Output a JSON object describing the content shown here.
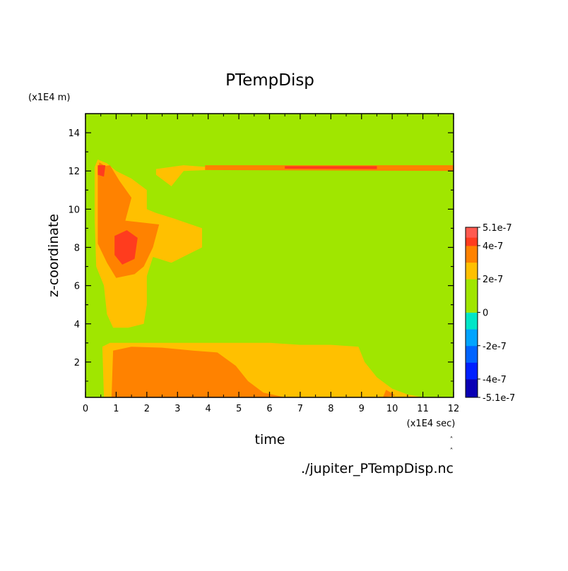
{
  "chart_data": {
    "type": "heatmap",
    "title": "PTempDisp",
    "xlabel": "time",
    "ylabel": "z-coordinate",
    "x_unit": "(x1E4 sec)",
    "y_unit": "(x1E4 m)",
    "source_file": "./jupiter_PTempDisp.nc",
    "xlim": [
      0,
      12
    ],
    "ylim": [
      0.15,
      15
    ],
    "x_ticks": [
      "0",
      "1",
      "2",
      "3",
      "4",
      "5",
      "6",
      "7",
      "8",
      "9",
      "10",
      "11",
      "12"
    ],
    "y_ticks": [
      "2",
      "4",
      "6",
      "8",
      "10",
      "12",
      "14"
    ],
    "colorbar": {
      "range": [
        -5.1e-07,
        5.1e-07
      ],
      "tick_labels": [
        "5.1e-7",
        "4e-7",
        "2e-7",
        "0",
        "-2e-7",
        "-4e-7",
        "-5.1e-7"
      ],
      "levels": [
        {
          "from": -5.1e-07,
          "to": -4e-07,
          "color": "#0a00b4"
        },
        {
          "from": -4e-07,
          "to": -3e-07,
          "color": "#0020ff"
        },
        {
          "from": -3e-07,
          "to": -2e-07,
          "color": "#0064ff"
        },
        {
          "from": -2e-07,
          "to": -1e-07,
          "color": "#00a4ff"
        },
        {
          "from": -1e-07,
          "to": 0,
          "color": "#00e6c8"
        },
        {
          "from": 0,
          "to": 1e-07,
          "color": "#a0e600"
        },
        {
          "from": 1e-07,
          "to": 2e-07,
          "color": "#a0e600"
        },
        {
          "from": 2e-07,
          "to": 3e-07,
          "color": "#ffc000"
        },
        {
          "from": 3e-07,
          "to": 4e-07,
          "color": "#ff8200"
        },
        {
          "from": 4e-07,
          "to": 4.5e-07,
          "color": "#ff3c1e"
        },
        {
          "from": 4.5e-07,
          "to": 5.1e-07,
          "color": "#ff5a50"
        }
      ]
    },
    "background_level": "#a0e600",
    "regions": [
      {
        "level": "#ffc000",
        "points": [
          [
            0.4,
            12.6
          ],
          [
            0.7,
            12.4
          ],
          [
            1.0,
            12.0
          ],
          [
            1.5,
            11.6
          ],
          [
            2.0,
            11.0
          ],
          [
            2.0,
            10.0
          ],
          [
            2.3,
            9.8
          ],
          [
            2.9,
            9.5
          ],
          [
            3.8,
            9.0
          ],
          [
            3.8,
            8.0
          ],
          [
            2.8,
            7.2
          ],
          [
            2.2,
            7.5
          ],
          [
            2.0,
            6.5
          ],
          [
            2.0,
            5.0
          ],
          [
            1.9,
            4.0
          ],
          [
            1.4,
            3.8
          ],
          [
            0.9,
            3.8
          ],
          [
            0.7,
            4.5
          ],
          [
            0.6,
            6.0
          ],
          [
            0.35,
            7.0
          ],
          [
            0.3,
            9.5
          ],
          [
            0.3,
            12.2
          ]
        ]
      },
      {
        "level": "#ffc000",
        "points": [
          [
            2.3,
            12.1
          ],
          [
            3.2,
            12.3
          ],
          [
            4.0,
            12.2
          ],
          [
            12,
            12.25
          ],
          [
            12,
            12.05
          ],
          [
            4.0,
            12.05
          ],
          [
            3.2,
            12.0
          ],
          [
            2.8,
            11.2
          ],
          [
            2.3,
            11.8
          ]
        ]
      },
      {
        "level": "#ff8200",
        "points": [
          [
            0.8,
            12.3
          ],
          [
            1.1,
            11.5
          ],
          [
            1.5,
            10.6
          ],
          [
            1.3,
            9.4
          ],
          [
            2.4,
            9.2
          ],
          [
            2.2,
            8.0
          ],
          [
            1.9,
            7.0
          ],
          [
            1.6,
            6.6
          ],
          [
            1.0,
            6.4
          ],
          [
            0.7,
            7.2
          ],
          [
            0.4,
            8.2
          ],
          [
            0.4,
            10.0
          ],
          [
            0.4,
            12.2
          ]
        ]
      },
      {
        "level": "#ff8200",
        "points": [
          [
            0.45,
            12.45
          ],
          [
            0.6,
            12.3
          ],
          [
            0.7,
            11.6
          ],
          [
            0.5,
            11.2
          ],
          [
            0.4,
            11.8
          ]
        ]
      },
      {
        "level": "#ff8200",
        "points": [
          [
            3.9,
            12.3
          ],
          [
            12,
            12.3
          ],
          [
            12,
            12.0
          ],
          [
            3.9,
            12.05
          ]
        ]
      },
      {
        "level": "#ff3c1e",
        "points": [
          [
            0.95,
            8.6
          ],
          [
            1.35,
            8.9
          ],
          [
            1.7,
            8.5
          ],
          [
            1.6,
            7.4
          ],
          [
            1.2,
            7.1
          ],
          [
            0.95,
            7.6
          ]
        ]
      },
      {
        "level": "#ff3c1e",
        "points": [
          [
            0.4,
            12.3
          ],
          [
            0.65,
            12.3
          ],
          [
            0.6,
            11.7
          ],
          [
            0.4,
            11.8
          ]
        ]
      },
      {
        "level": "#ff3c1e",
        "points": [
          [
            6.5,
            12.25
          ],
          [
            9.5,
            12.25
          ],
          [
            9.5,
            12.1
          ],
          [
            6.5,
            12.12
          ]
        ]
      },
      {
        "level": "#ffc000",
        "points": [
          [
            0.6,
            0.15
          ],
          [
            0.55,
            2.8
          ],
          [
            0.8,
            3.0
          ],
          [
            2.0,
            3.0
          ],
          [
            3.5,
            3.0
          ],
          [
            5.0,
            3.0
          ],
          [
            6.0,
            3.0
          ],
          [
            7.0,
            2.9
          ],
          [
            8.0,
            2.9
          ],
          [
            8.9,
            2.8
          ],
          [
            9.1,
            2.0
          ],
          [
            9.5,
            1.2
          ],
          [
            10.0,
            0.6
          ],
          [
            10.5,
            0.3
          ],
          [
            11.0,
            0.15
          ]
        ]
      },
      {
        "level": "#ff8200",
        "points": [
          [
            0.85,
            0.15
          ],
          [
            0.9,
            2.6
          ],
          [
            1.5,
            2.8
          ],
          [
            2.5,
            2.75
          ],
          [
            3.5,
            2.6
          ],
          [
            4.3,
            2.5
          ],
          [
            4.9,
            1.8
          ],
          [
            5.3,
            1.0
          ],
          [
            5.8,
            0.4
          ],
          [
            6.5,
            0.15
          ]
        ]
      },
      {
        "level": "#ff8200",
        "points": [
          [
            9.8,
            0.55
          ],
          [
            10.1,
            0.25
          ],
          [
            9.7,
            0.15
          ]
        ]
      }
    ]
  }
}
